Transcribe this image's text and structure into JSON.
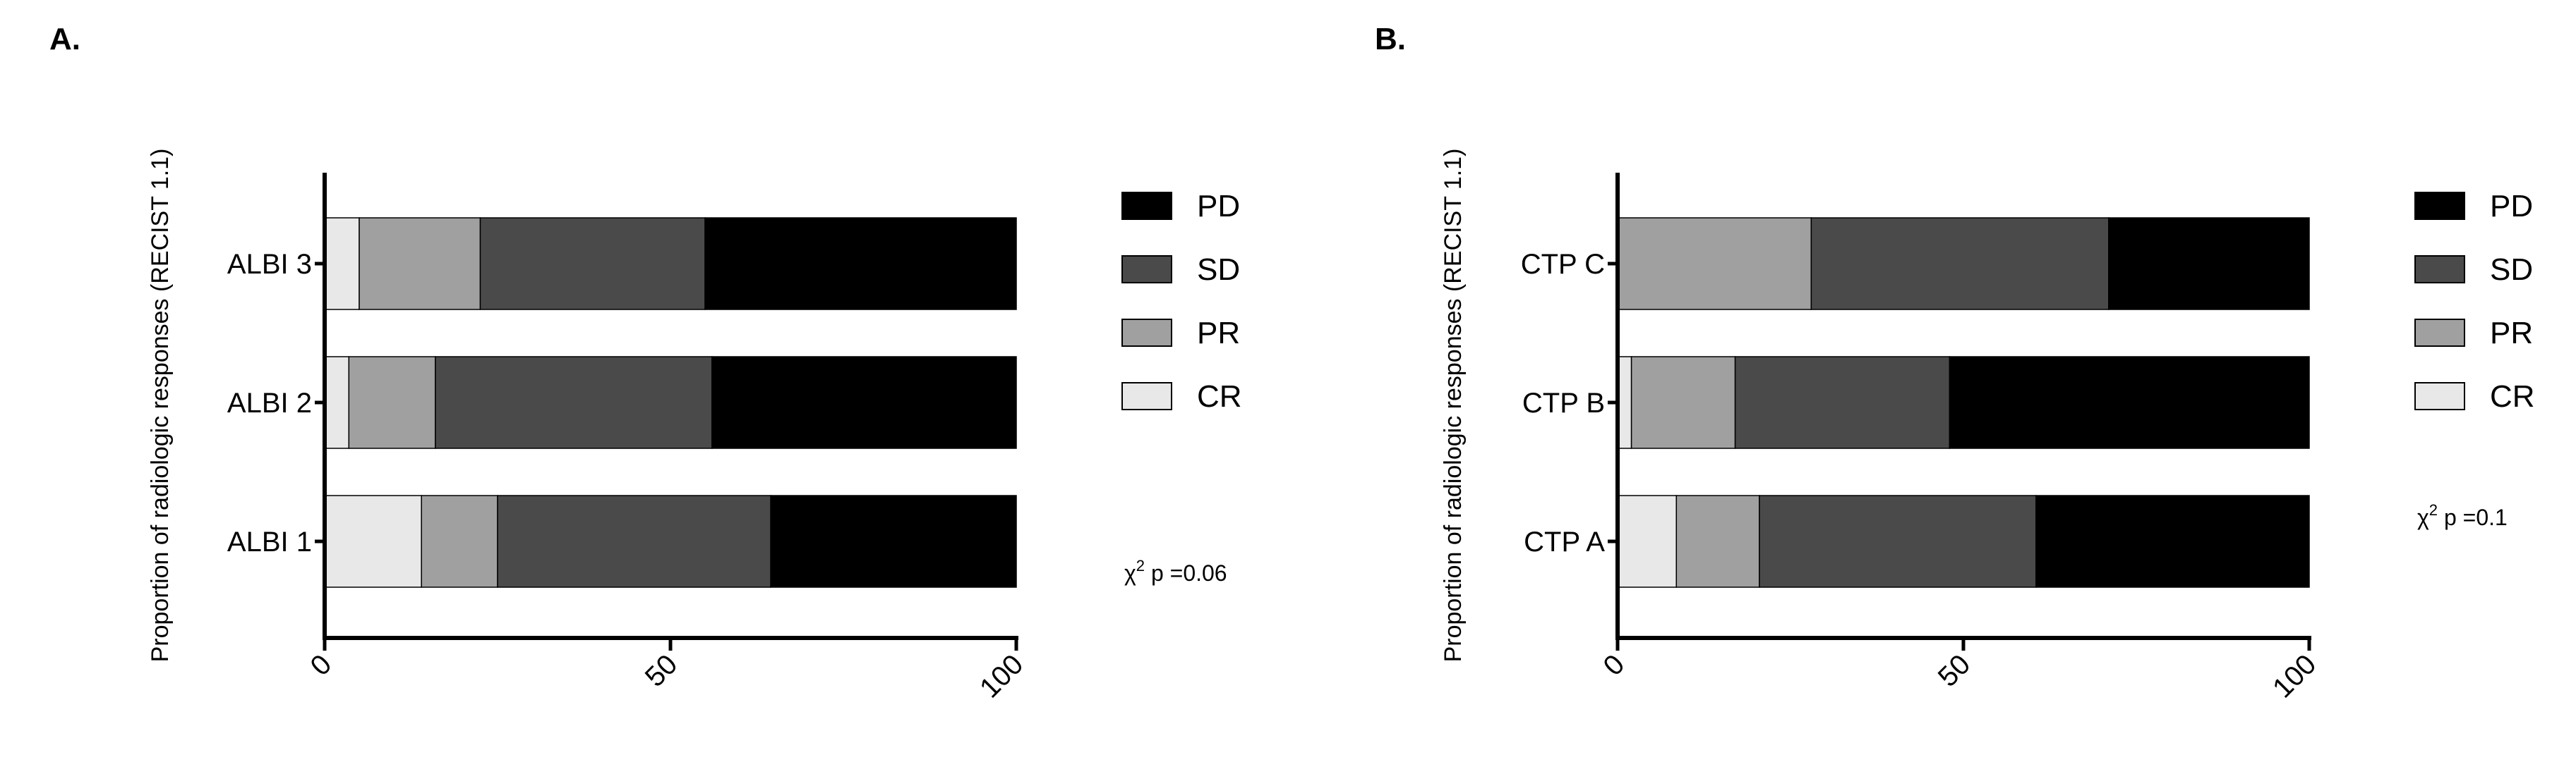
{
  "colors": {
    "PD": "#000000",
    "SD": "#4a4a4a",
    "PR": "#a0a0a0",
    "CR": "#e8e8e8",
    "axis": "#000000"
  },
  "chart_data": [
    {
      "panel_label": "A.",
      "type": "bar",
      "orientation": "horizontal",
      "stacked": true,
      "ylabel": "Proportion of radiologic responses (RECIST 1.1)",
      "xlabel": "",
      "xlim": [
        0,
        100
      ],
      "xticks": [
        "0",
        "50",
        "100"
      ],
      "categories": [
        "ALBI 3",
        "ALBI 2",
        "ALBI 1"
      ],
      "series": [
        {
          "name": "CR",
          "values": [
            5,
            3.5,
            14
          ]
        },
        {
          "name": "PR",
          "values": [
            17.5,
            12.5,
            11
          ]
        },
        {
          "name": "SD",
          "values": [
            32.5,
            40,
            39.5
          ]
        },
        {
          "name": "PD",
          "values": [
            45,
            44,
            35.5
          ]
        }
      ],
      "legend": [
        "PD",
        "SD",
        "PR",
        "CR"
      ],
      "legend_position": "right",
      "annotation": {
        "chi": "χ",
        "sup": "2",
        "rest": " p =0.06"
      },
      "grid": false
    },
    {
      "panel_label": "B.",
      "type": "bar",
      "orientation": "horizontal",
      "stacked": true,
      "ylabel": "Proportion of radiologic responses (RECIST 1.1)",
      "xlabel": "",
      "xlim": [
        0,
        100
      ],
      "xticks": [
        "0",
        "50",
        "100"
      ],
      "categories": [
        "CTP C",
        "CTP B",
        "CTP A"
      ],
      "series": [
        {
          "name": "CR",
          "values": [
            0,
            2,
            8.5
          ]
        },
        {
          "name": "PR",
          "values": [
            28,
            15,
            12
          ]
        },
        {
          "name": "SD",
          "values": [
            43,
            31,
            40
          ]
        },
        {
          "name": "PD",
          "values": [
            29,
            52,
            39.5
          ]
        }
      ],
      "legend": [
        "PD",
        "SD",
        "PR",
        "CR"
      ],
      "legend_position": "right",
      "annotation": {
        "chi": "χ",
        "sup": "2",
        "rest": " p =0.1"
      },
      "grid": false
    }
  ]
}
